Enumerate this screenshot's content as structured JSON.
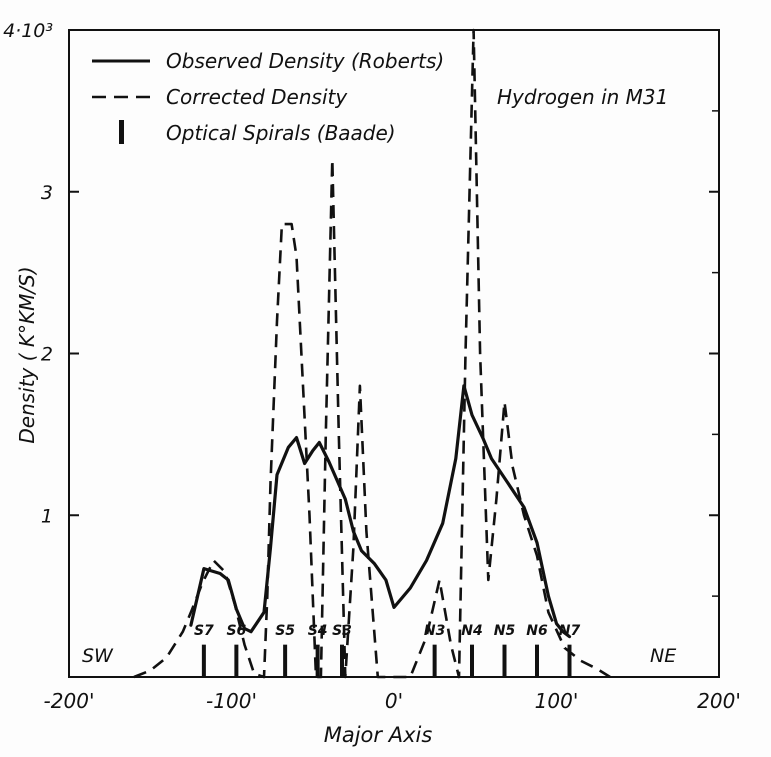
{
  "chart_data": {
    "type": "line",
    "title": "Hydrogen in M31",
    "xlabel": "Major Axis",
    "ylabel": "Density ( K°KM/S)",
    "xlim": [
      -200,
      200
    ],
    "ylim": [
      0,
      4
    ],
    "x_ticks": [
      {
        "value": -200,
        "label": "-200'"
      },
      {
        "value": -100,
        "label": "-100'"
      },
      {
        "value": 0,
        "label": "0'"
      },
      {
        "value": 100,
        "label": "100'"
      },
      {
        "value": 200,
        "label": "200'"
      }
    ],
    "y_ticks": [
      {
        "value": 1,
        "label": "1"
      },
      {
        "value": 2,
        "label": "2"
      },
      {
        "value": 3,
        "label": "3"
      },
      {
        "value": 4,
        "label": "4·10³"
      }
    ],
    "legend": {
      "position": "top-left",
      "entries": [
        {
          "name": "Observed Density (Roberts)",
          "style": "solid"
        },
        {
          "name": "Corrected Density",
          "style": "dashed"
        },
        {
          "name": "Optical Spirals (Baade)",
          "style": "bar"
        }
      ]
    },
    "direction_labels": {
      "left": "SW",
      "right": "NE"
    },
    "series": [
      {
        "name": "Observed Density (Roberts)",
        "style": "solid",
        "points": [
          [
            -125,
            0.32
          ],
          [
            -117,
            0.67
          ],
          [
            -107,
            0.64
          ],
          [
            -102,
            0.6
          ],
          [
            -97,
            0.42
          ],
          [
            -92,
            0.3
          ],
          [
            -88,
            0.28
          ],
          [
            -80,
            0.4
          ],
          [
            -76,
            0.8
          ],
          [
            -72,
            1.25
          ],
          [
            -65,
            1.42
          ],
          [
            -60,
            1.48
          ],
          [
            -55,
            1.32
          ],
          [
            -50,
            1.4
          ],
          [
            -46,
            1.45
          ],
          [
            -40,
            1.33
          ],
          [
            -30,
            1.1
          ],
          [
            -25,
            0.9
          ],
          [
            -20,
            0.78
          ],
          [
            -12,
            0.7
          ],
          [
            -5,
            0.6
          ],
          [
            0,
            0.43
          ],
          [
            10,
            0.55
          ],
          [
            20,
            0.72
          ],
          [
            30,
            0.95
          ],
          [
            38,
            1.35
          ],
          [
            43,
            1.8
          ],
          [
            48,
            1.62
          ],
          [
            55,
            1.47
          ],
          [
            60,
            1.35
          ],
          [
            70,
            1.2
          ],
          [
            80,
            1.05
          ],
          [
            88,
            0.83
          ],
          [
            95,
            0.5
          ],
          [
            100,
            0.33
          ],
          [
            104,
            0.28
          ],
          [
            108,
            0.25
          ]
        ]
      },
      {
        "name": "Corrected Density",
        "style": "dashed",
        "points": [
          [
            -160,
            0.0
          ],
          [
            -150,
            0.04
          ],
          [
            -140,
            0.12
          ],
          [
            -130,
            0.28
          ],
          [
            -125,
            0.4
          ],
          [
            -118,
            0.58
          ],
          [
            -111,
            0.72
          ],
          [
            -104,
            0.65
          ],
          [
            -98,
            0.45
          ],
          [
            -92,
            0.2
          ],
          [
            -86,
            0.02
          ],
          [
            -80,
            0.0
          ],
          [
            -78,
            0.5
          ],
          [
            -76,
            1.2
          ],
          [
            -72,
            2.2
          ],
          [
            -69,
            2.8
          ],
          [
            -63,
            2.8
          ],
          [
            -60,
            2.6
          ],
          [
            -52,
            1.0
          ],
          [
            -48,
            0.0
          ],
          [
            -45,
            0.0
          ],
          [
            -42,
            1.5
          ],
          [
            -38,
            3.2
          ],
          [
            -34,
            1.5
          ],
          [
            -30,
            0.0
          ],
          [
            -25,
            0.8
          ],
          [
            -21,
            1.8
          ],
          [
            -17,
            0.9
          ],
          [
            -10,
            0.0
          ],
          [
            10,
            0.0
          ],
          [
            20,
            0.25
          ],
          [
            28,
            0.6
          ],
          [
            35,
            0.2
          ],
          [
            40,
            0.0
          ],
          [
            44,
            2.0
          ],
          [
            49,
            4.0
          ],
          [
            53,
            2.0
          ],
          [
            58,
            0.6
          ],
          [
            63,
            1.1
          ],
          [
            68,
            1.7
          ],
          [
            73,
            1.3
          ],
          [
            80,
            1.0
          ],
          [
            88,
            0.75
          ],
          [
            95,
            0.4
          ],
          [
            105,
            0.18
          ],
          [
            115,
            0.1
          ],
          [
            125,
            0.05
          ],
          [
            133,
            0.0
          ]
        ]
      }
    ],
    "optical_spirals": [
      {
        "label": "S7",
        "x": -117
      },
      {
        "label": "S6",
        "x": -97
      },
      {
        "label": "S5",
        "x": -67
      },
      {
        "label": "S4",
        "x": -47
      },
      {
        "label": "S3",
        "x": -32
      },
      {
        "label": "N3",
        "x": 25
      },
      {
        "label": "N4",
        "x": 48
      },
      {
        "label": "N5",
        "x": 68
      },
      {
        "label": "N6",
        "x": 88
      },
      {
        "label": "N7",
        "x": 108
      }
    ]
  }
}
